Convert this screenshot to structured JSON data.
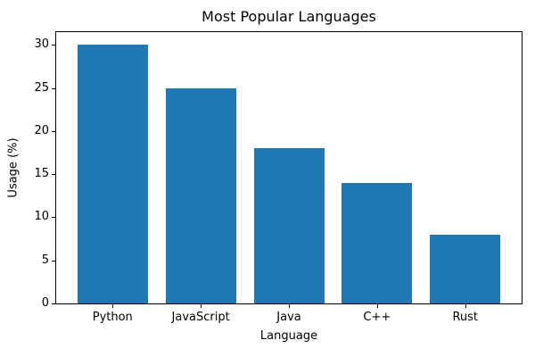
{
  "chart_data": {
    "type": "bar",
    "title": "Most Popular Languages",
    "xlabel": "Language",
    "ylabel": "Usage (%)",
    "categories": [
      "Python",
      "JavaScript",
      "Java",
      "C++",
      "Rust"
    ],
    "values": [
      30,
      25,
      18,
      14,
      8
    ],
    "ylim": [
      0,
      31.5
    ],
    "yticks": [
      0,
      5,
      10,
      15,
      20,
      25,
      30
    ],
    "bar_color": "#1f77b4",
    "axis_color": "#000000",
    "text_color": "#000000",
    "grid": false,
    "legend": "none"
  }
}
